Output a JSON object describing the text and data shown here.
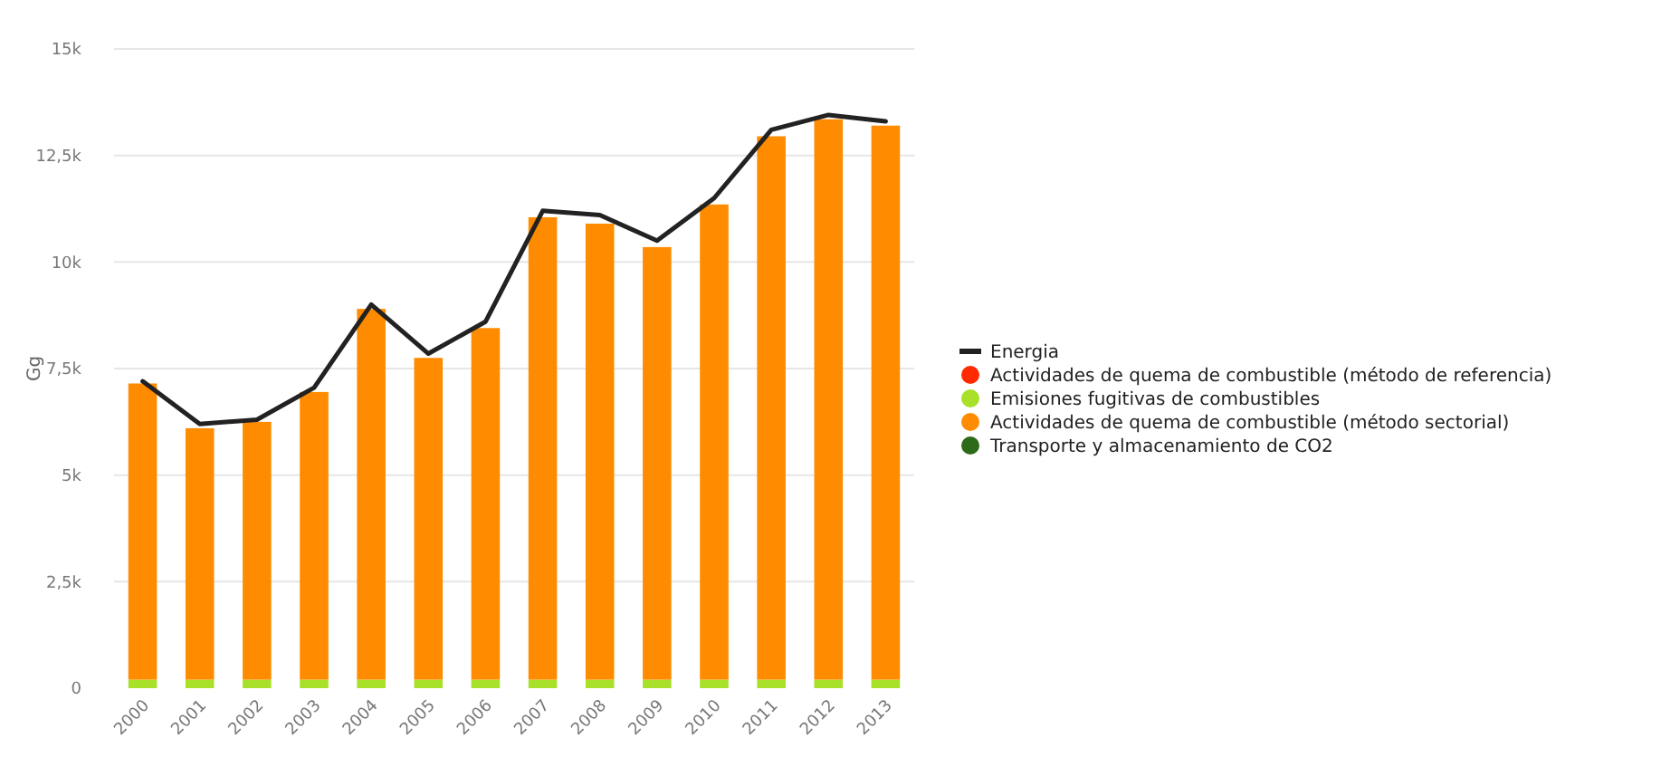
{
  "chart_data": {
    "type": "bar",
    "stacked": true,
    "ylabel": "Gg",
    "categories": [
      "2000",
      "2001",
      "2002",
      "2003",
      "2004",
      "2005",
      "2006",
      "2007",
      "2008",
      "2009",
      "2010",
      "2011",
      "2012",
      "2013"
    ],
    "series": [
      {
        "name": "Energia",
        "type": "line",
        "color": "#222222",
        "values": [
          7.2,
          6.2,
          6.3,
          7.05,
          9.0,
          7.85,
          8.6,
          11.2,
          11.1,
          10.5,
          11.5,
          13.1,
          13.45,
          13.3
        ]
      },
      {
        "name": "Actividades de quema de combustible (método de referencia)",
        "color": "#ff2a00",
        "values": [
          null,
          null,
          null,
          null,
          null,
          null,
          null,
          null,
          null,
          null,
          null,
          null,
          null,
          null
        ]
      },
      {
        "name": "Emisiones fugitivas de combustibles",
        "color": "#a8e02a",
        "values": [
          0.2,
          0.2,
          0.2,
          0.2,
          0.2,
          0.2,
          0.2,
          0.2,
          0.2,
          0.2,
          0.2,
          0.2,
          0.2,
          0.2
        ]
      },
      {
        "name": "Actividades de quema de combustible (método sectorial)",
        "color": "#ff8c00",
        "values": [
          6.95,
          5.9,
          6.05,
          6.75,
          8.7,
          7.55,
          8.25,
          10.85,
          10.7,
          10.15,
          11.15,
          12.75,
          13.15,
          13.0
        ]
      },
      {
        "name": "Transporte y almacenamiento de CO2",
        "color": "#2d6a1a",
        "values": [
          null,
          null,
          null,
          null,
          null,
          null,
          null,
          null,
          null,
          null,
          null,
          null,
          null,
          null
        ]
      }
    ],
    "ylim": [
      0,
      15
    ],
    "yticks": [
      {
        "value": 0,
        "label": "0"
      },
      {
        "value": 2.5,
        "label": "2,5k"
      },
      {
        "value": 5,
        "label": "5k"
      },
      {
        "value": 7.5,
        "label": "7,5k"
      },
      {
        "value": 10,
        "label": "10k"
      },
      {
        "value": 12.5,
        "label": "12,5k"
      },
      {
        "value": 15,
        "label": "15k"
      }
    ],
    "grid": "y",
    "legend": "right"
  }
}
